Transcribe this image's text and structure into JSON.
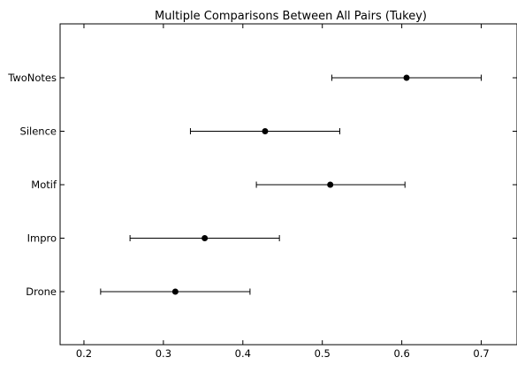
{
  "chart_data": {
    "type": "errorbar",
    "title": "Multiple Comparisons Between All Pairs (Tukey)",
    "xlabel": "",
    "ylabel": "",
    "xlim": [
      0.17,
      0.745
    ],
    "xticks": [
      "0.2",
      "0.3",
      "0.4",
      "0.5",
      "0.6",
      "0.7"
    ],
    "xtick_values": [
      0.2,
      0.3,
      0.4,
      0.5,
      0.6,
      0.7
    ],
    "groups": [
      {
        "label": "TwoNotes",
        "mean": 0.606,
        "lower": 0.512,
        "upper": 0.7
      },
      {
        "label": "Silence",
        "mean": 0.428,
        "lower": 0.334,
        "upper": 0.522
      },
      {
        "label": "Motif",
        "mean": 0.51,
        "lower": 0.417,
        "upper": 0.604
      },
      {
        "label": "Impro",
        "mean": 0.352,
        "lower": 0.258,
        "upper": 0.446
      },
      {
        "label": "Drone",
        "mean": 0.315,
        "lower": 0.221,
        "upper": 0.409
      }
    ],
    "grid": false,
    "legend": "none"
  }
}
